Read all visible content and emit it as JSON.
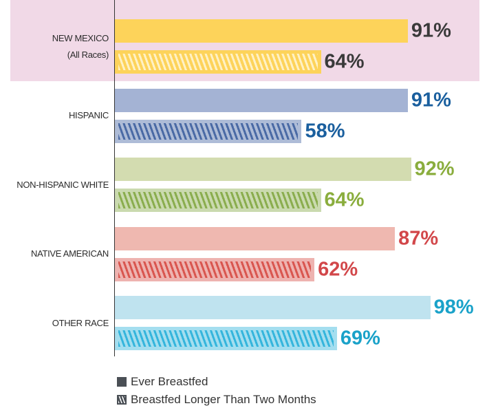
{
  "chart_data": {
    "type": "bar",
    "orientation": "horizontal",
    "categories": [
      "NEW MEXICO\n(All Races)",
      "HISPANIC",
      "NON-HISPANIC WHITE",
      "NATIVE AMERICAN",
      "OTHER RACE"
    ],
    "series": [
      {
        "name": "Ever Breastfed",
        "values": [
          91,
          91,
          92,
          87,
          98
        ],
        "value_labels": [
          "91%",
          "91%",
          "92%",
          "87%",
          "98%"
        ],
        "colors": [
          "#fdd35a",
          "#a4b3d4",
          "#d3dcb0",
          "#efb8b0",
          "#bfe3ef"
        ],
        "hatched": false
      },
      {
        "name": "Breastfed Longer Than Two Months",
        "values": [
          64,
          58,
          64,
          62,
          69
        ],
        "value_labels": [
          "64%",
          "58%",
          "64%",
          "62%",
          "69%"
        ],
        "colors": [
          "#fdd35a",
          "#4a6aa5",
          "#8aad4e",
          "#d9564f",
          "#35b5dc"
        ],
        "hatched": true
      }
    ],
    "label_colors": [
      "#3a3a3a",
      "#1a5f9e",
      "#8aad3d",
      "#d2474a",
      "#1aa2c9"
    ],
    "highlight_color": "#f1d9e7",
    "legend_color": "#4a4f55",
    "xlim": [
      0,
      100
    ]
  }
}
